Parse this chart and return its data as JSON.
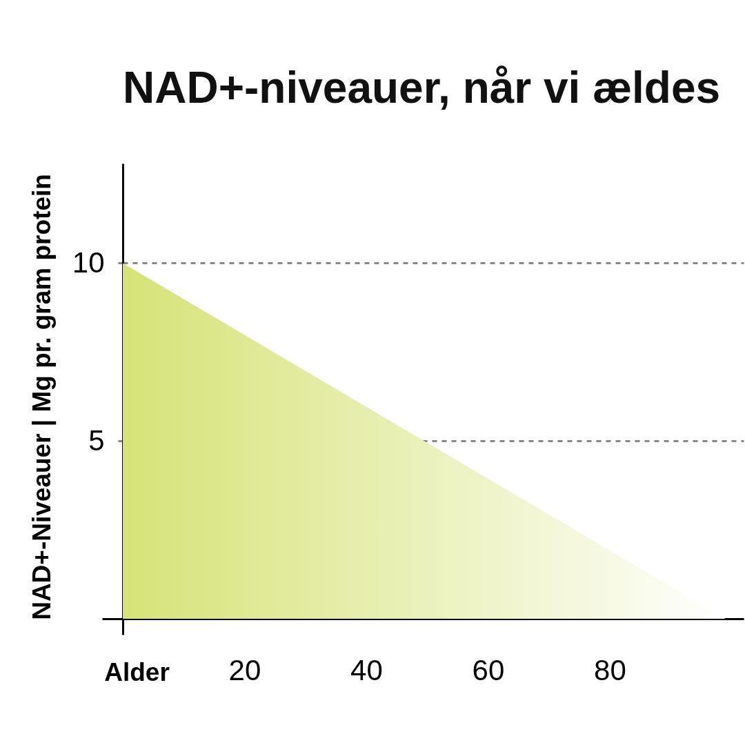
{
  "chart_data": {
    "type": "area",
    "title": "NAD+-niveauer, når vi ældes",
    "xlabel": "Alder",
    "ylabel": "NAD+-Niveauer | Mg pr. gram protein",
    "x": [
      0,
      99
    ],
    "series": [
      {
        "color": "#d6e377",
        "values": [
          10,
          0
        ]
      }
    ],
    "xlim": [
      0,
      102
    ],
    "ylim": [
      0,
      12.8
    ],
    "xticks": [
      {
        "value": 0,
        "label": null
      },
      20,
      40,
      60,
      80
    ],
    "yticks": [
      {
        "value": 0,
        "label": null
      },
      5,
      10
    ],
    "grid": "y"
  }
}
